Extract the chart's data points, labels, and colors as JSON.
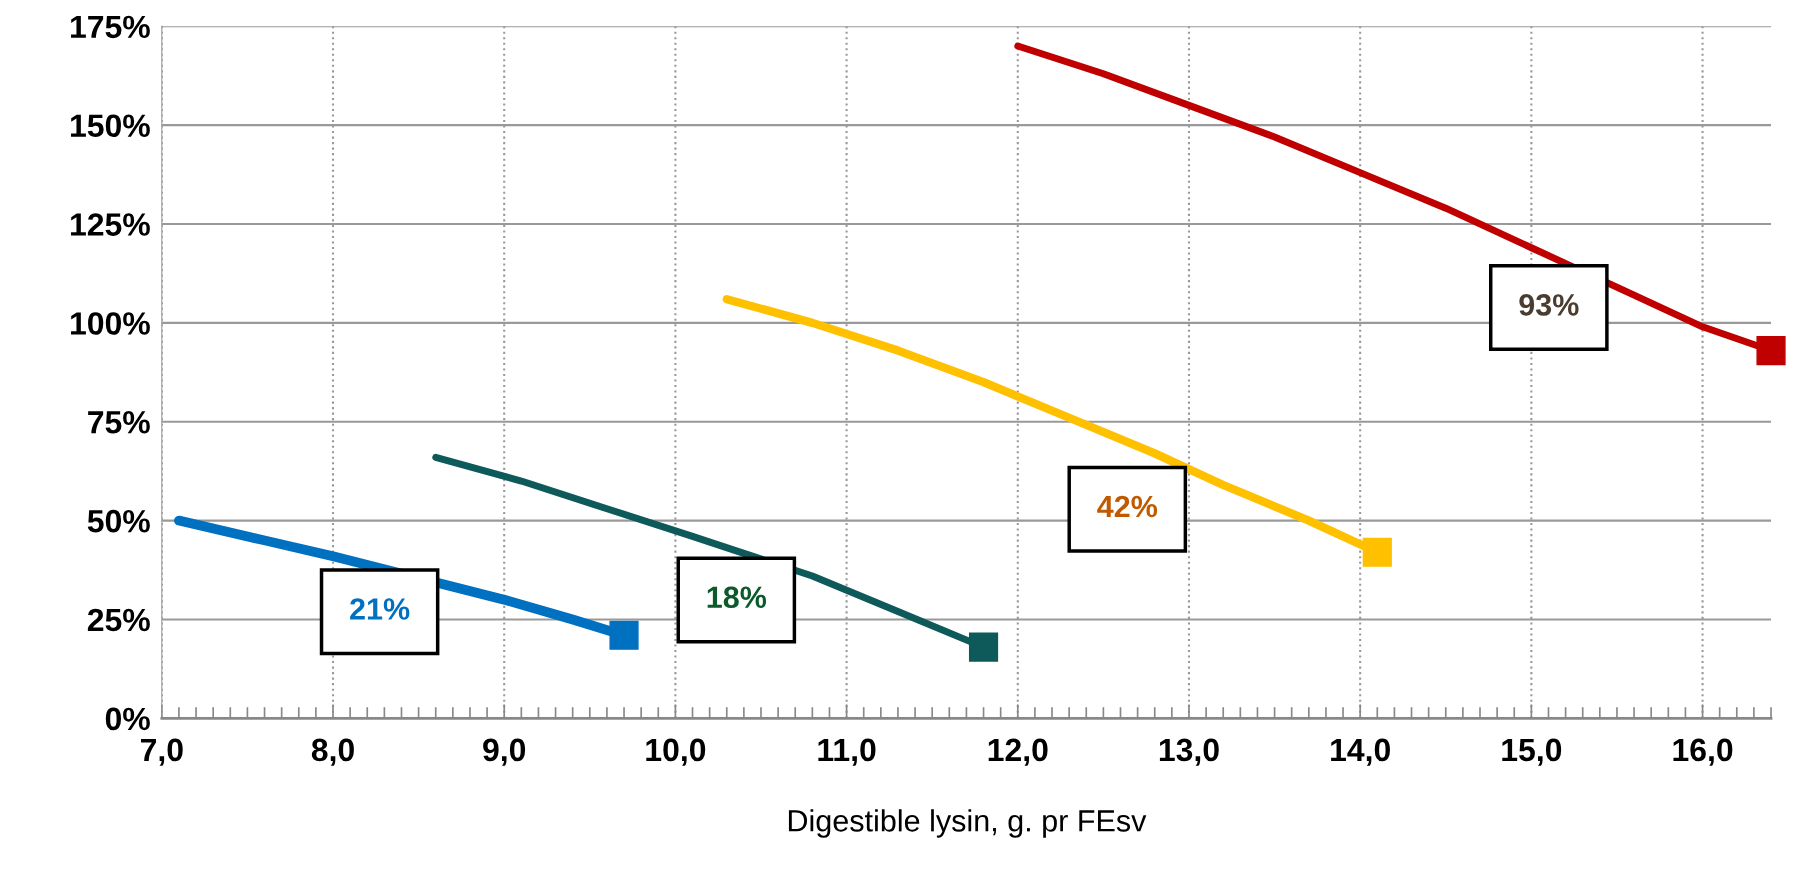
{
  "chart_data": {
    "type": "line",
    "xlabel": "Digestible lysin, g. pr FEsv",
    "xlim": [
      7,
      16.4
    ],
    "ylim": [
      0,
      175
    ],
    "xticks": [
      {
        "value": 7,
        "label": "7,0"
      },
      {
        "value": 8,
        "label": "8,0"
      },
      {
        "value": 9,
        "label": "9,0"
      },
      {
        "value": 10,
        "label": "10,0"
      },
      {
        "value": 11,
        "label": "11,0"
      },
      {
        "value": 12,
        "label": "12,0"
      },
      {
        "value": 13,
        "label": "13,0"
      },
      {
        "value": 14,
        "label": "14,0"
      },
      {
        "value": 15,
        "label": "15,0"
      },
      {
        "value": 16,
        "label": "16,0"
      }
    ],
    "yticks": [
      {
        "value": 0,
        "label": "0%"
      },
      {
        "value": 25,
        "label": "25%"
      },
      {
        "value": 50,
        "label": "50%"
      },
      {
        "value": 75,
        "label": "75%"
      },
      {
        "value": 100,
        "label": "100%"
      },
      {
        "value": 125,
        "label": "125%"
      },
      {
        "value": 150,
        "label": "150%"
      },
      {
        "value": 175,
        "label": "175%"
      }
    ],
    "grid": true,
    "legend": false,
    "line_style": "solid",
    "series": [
      {
        "color": "#0070c0",
        "x": [
          7.1,
          7.6,
          8.0,
          9.0,
          9.4,
          9.7
        ],
        "values": [
          50,
          45,
          41,
          30,
          25,
          21
        ]
      },
      {
        "color": "#0e5a5a",
        "x": [
          8.6,
          9.1,
          9.6,
          10.1,
          10.8,
          11.3,
          11.8
        ],
        "values": [
          66,
          60,
          53,
          46,
          36,
          27,
          18
        ]
      },
      {
        "color": "#ffc000",
        "x": [
          10.3,
          10.8,
          11.3,
          11.8,
          12.3,
          12.8,
          13.2,
          13.7,
          14.1
        ],
        "values": [
          106,
          100,
          93,
          85,
          76,
          67,
          59,
          50,
          42
        ]
      },
      {
        "color": "#c00000",
        "x": [
          12.0,
          12.5,
          13.0,
          13.5,
          14.0,
          14.5,
          15.0,
          15.6,
          16.0,
          16.4
        ],
        "values": [
          170,
          163,
          155,
          147,
          138,
          129,
          119,
          107,
          99,
          93
        ]
      }
    ],
    "annotations": [
      "21%",
      "18%",
      "42%",
      "93%"
    ]
  }
}
